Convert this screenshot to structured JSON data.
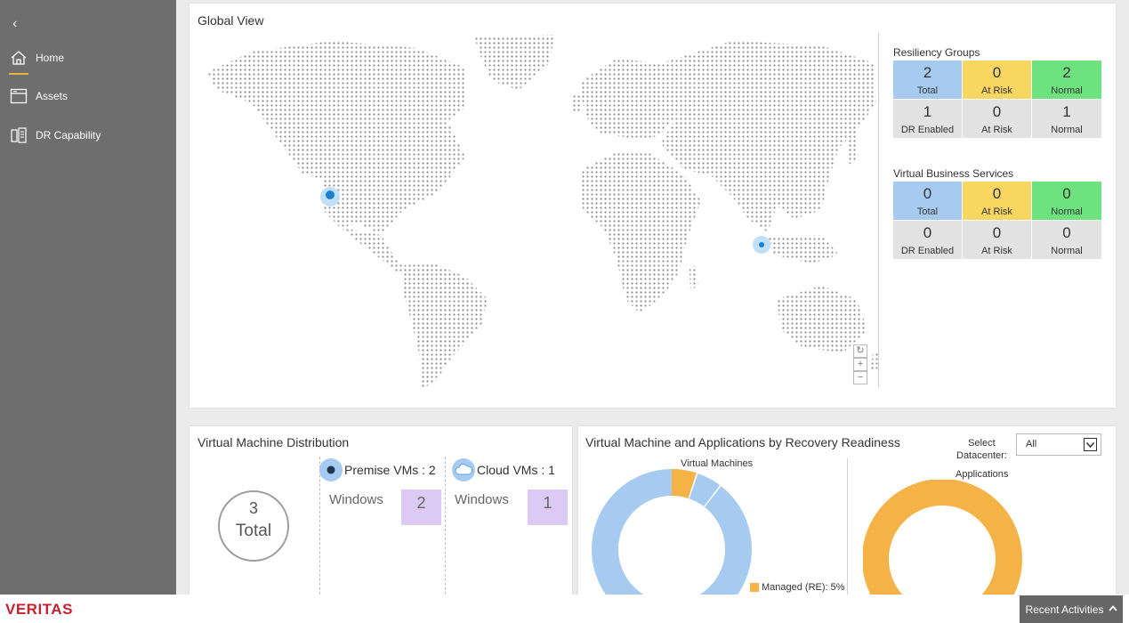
{
  "sidebar": {
    "collapse_glyph": "‹",
    "items": [
      {
        "label": "Home",
        "icon": "home-icon",
        "active": true
      },
      {
        "label": "Assets",
        "icon": "assets-icon",
        "active": false
      },
      {
        "label": "DR Capability",
        "icon": "dr-capability-icon",
        "active": false
      }
    ]
  },
  "global_view": {
    "title": "Global View",
    "map_controls": {
      "reset": "↻",
      "zoom_in": "+",
      "zoom_out": "−"
    },
    "resiliency_groups": {
      "title": "Resiliency Groups",
      "row1": [
        {
          "value": "2",
          "label": "Total"
        },
        {
          "value": "0",
          "label": "At Risk"
        },
        {
          "value": "2",
          "label": "Normal"
        }
      ],
      "row2": [
        {
          "value": "1",
          "label": "DR Enabled"
        },
        {
          "value": "0",
          "label": "At Risk"
        },
        {
          "value": "1",
          "label": "Normal"
        }
      ]
    },
    "virtual_business_services": {
      "title": "Virtual Business Services",
      "row1": [
        {
          "value": "0",
          "label": "Total"
        },
        {
          "value": "0",
          "label": "At Risk"
        },
        {
          "value": "0",
          "label": "Normal"
        }
      ],
      "row2": [
        {
          "value": "0",
          "label": "DR Enabled"
        },
        {
          "value": "0",
          "label": "At Risk"
        },
        {
          "value": "0",
          "label": "Normal"
        }
      ]
    }
  },
  "vm_distribution": {
    "title": "Virtual Machine Distribution",
    "total_value": "3",
    "total_label": "Total",
    "premise": {
      "label": "Premise VMs : 2",
      "os": "Windows",
      "count": "2"
    },
    "cloud": {
      "label": "Cloud VMs : 1",
      "os": "Windows",
      "count": "1"
    }
  },
  "recovery_readiness": {
    "title": "Virtual Machine and Applications by Recovery Readiness",
    "select_label_1": "Select",
    "select_label_2": "Datacenter:",
    "select_value": "All",
    "vm_label": "Virtual Machines",
    "apps_label": "Applications",
    "legend_managed": "Managed (RE): 5%"
  },
  "colors": {
    "blue": "#a7cbf0",
    "yellow": "#f9d561",
    "green": "#6ee27e",
    "grey": "#e2e2e2",
    "orange": "#f5b347",
    "purple": "#dcc9f4",
    "brand_red": "#c8202f"
  },
  "footer": {
    "logo": "VERITAS",
    "recent_activities": "Recent Activities"
  }
}
